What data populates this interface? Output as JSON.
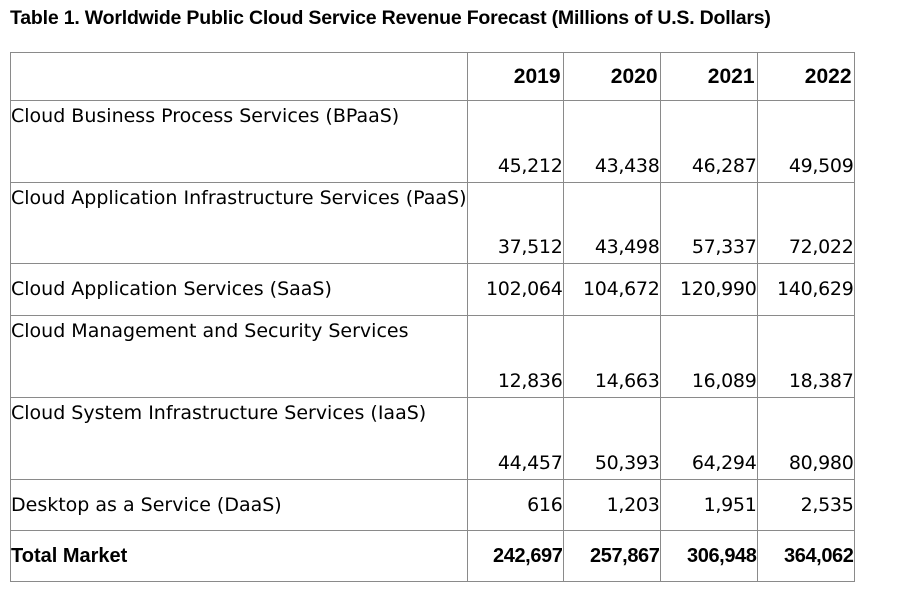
{
  "title": "Table 1. Worldwide Public Cloud Service Revenue Forecast (Millions of U.S. Dollars)",
  "table": {
    "header": [
      "",
      "2019",
      "2020",
      "2021",
      "2022"
    ],
    "rows": [
      {
        "label": "Cloud Business Process Services (BPaaS)",
        "values": [
          "45,212",
          "43,438",
          "46,287",
          "49,509"
        ]
      },
      {
        "label": "Cloud Application Infrastructure Services (PaaS)",
        "values": [
          "37,512",
          "43,498",
          "57,337",
          "72,022"
        ]
      },
      {
        "label": "Cloud Application Services (SaaS)",
        "values": [
          "102,064",
          "104,672",
          "120,990",
          "140,629"
        ]
      },
      {
        "label": "Cloud Management and Security Services",
        "values": [
          "12,836",
          "14,663",
          "16,089",
          "18,387"
        ]
      },
      {
        "label": "Cloud System Infrastructure Services (IaaS)",
        "values": [
          "44,457",
          "50,393",
          "64,294",
          "80,980"
        ]
      },
      {
        "label": "Desktop as a Service (DaaS)",
        "values": [
          "616",
          "1,203",
          "1,951",
          "2,535"
        ]
      }
    ],
    "total": {
      "label": "Total Market",
      "values": [
        "242,697",
        "257,867",
        "306,948",
        "364,062"
      ]
    }
  }
}
